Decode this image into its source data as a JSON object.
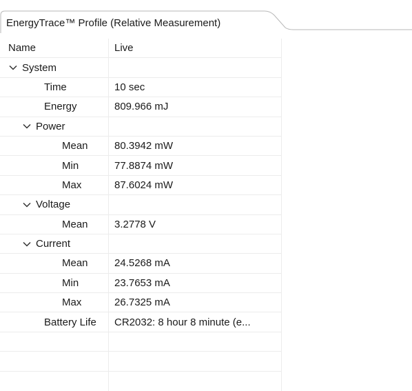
{
  "tab": {
    "title": "EnergyTrace™ Profile (Relative Measurement)"
  },
  "table": {
    "columns": [
      "Name",
      "Live"
    ],
    "system": {
      "label": "System",
      "time": {
        "label": "Time",
        "value": "10 sec"
      },
      "energy": {
        "label": "Energy",
        "value": "809.966 mJ"
      },
      "power": {
        "label": "Power",
        "mean": {
          "label": "Mean",
          "value": "80.3942 mW"
        },
        "min": {
          "label": "Min",
          "value": "77.8874 mW"
        },
        "max": {
          "label": "Max",
          "value": "87.6024 mW"
        }
      },
      "voltage": {
        "label": "Voltage",
        "mean": {
          "label": "Mean",
          "value": "3.2778 V"
        }
      },
      "current": {
        "label": "Current",
        "mean": {
          "label": "Mean",
          "value": "24.5268 mA"
        },
        "min": {
          "label": "Min",
          "value": "23.7653 mA"
        },
        "max": {
          "label": "Max",
          "value": "26.7325 mA"
        }
      },
      "battery": {
        "label": "Battery Life",
        "value": "CR2032: 8 hour 8 minute  (e..."
      }
    }
  }
}
